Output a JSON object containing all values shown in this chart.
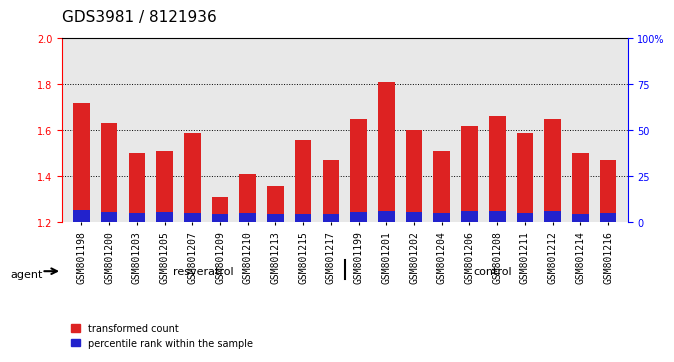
{
  "title": "GDS3981 / 8121936",
  "samples": [
    "GSM801198",
    "GSM801200",
    "GSM801203",
    "GSM801205",
    "GSM801207",
    "GSM801209",
    "GSM801210",
    "GSM801213",
    "GSM801215",
    "GSM801217",
    "GSM801199",
    "GSM801201",
    "GSM801202",
    "GSM801204",
    "GSM801206",
    "GSM801208",
    "GSM801211",
    "GSM801212",
    "GSM801214",
    "GSM801216"
  ],
  "red_values": [
    1.72,
    1.63,
    1.5,
    1.51,
    1.59,
    1.31,
    1.41,
    1.36,
    1.56,
    1.47,
    1.65,
    1.81,
    1.6,
    1.51,
    1.62,
    1.66,
    1.59,
    1.65,
    1.5,
    1.47
  ],
  "blue_values": [
    0.055,
    0.045,
    0.042,
    0.043,
    0.04,
    0.038,
    0.04,
    0.035,
    0.038,
    0.037,
    0.043,
    0.05,
    0.044,
    0.04,
    0.048,
    0.048,
    0.042,
    0.048,
    0.038,
    0.04
  ],
  "ylim_left": [
    1.2,
    2.0
  ],
  "ylim_right": [
    0,
    100
  ],
  "yticks_left": [
    1.2,
    1.4,
    1.6,
    1.8,
    2.0
  ],
  "yticks_right": [
    0,
    25,
    50,
    75,
    100
  ],
  "ytick_labels_right": [
    "0",
    "25",
    "50",
    "75",
    "100%"
  ],
  "bar_width": 0.6,
  "red_color": "#dd2222",
  "blue_color": "#2222cc",
  "resveratrol_count": 10,
  "group_labels": [
    "resveratrol",
    "control"
  ],
  "agent_label": "agent",
  "legend_red": "transformed count",
  "legend_blue": "percentile rank within the sample",
  "bg_plot": "#e8e8e8",
  "bg_group_resv": "#99ee88",
  "bg_group_ctrl": "#55dd55",
  "title_fontsize": 11,
  "tick_fontsize": 7,
  "label_fontsize": 8
}
